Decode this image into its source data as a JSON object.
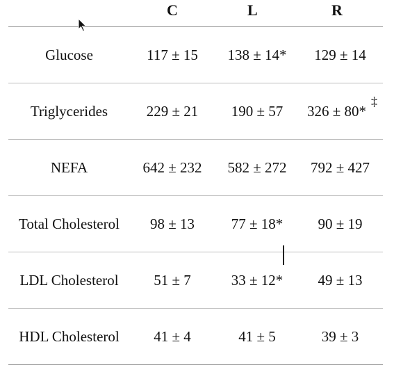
{
  "headers": [
    "",
    "C",
    "L",
    "R"
  ],
  "rows": [
    {
      "label": "Glucose",
      "c": "117 ± 15",
      "l": "138 ± 14*",
      "r": "129 ± 14"
    },
    {
      "label": "Triglycerides",
      "c": "229 ± 21",
      "l": "190 ± 57",
      "r": "326 ± 80*",
      "r_mark": "‡"
    },
    {
      "label": "NEFA",
      "c": "642 ± 232",
      "l": "582 ± 272",
      "r": "792 ± 427"
    },
    {
      "label": "Total Cholesterol",
      "c": "98 ± 13",
      "l": "77 ± 18*",
      "r": "90 ± 19"
    },
    {
      "label": "LDL Cholesterol",
      "c": "51 ± 7",
      "l": "33 ± 12*",
      "r": "49 ± 13"
    },
    {
      "label": "HDL Cholesterol",
      "c": "41 ± 4",
      "l": "41 ± 5",
      "r": "39 ± 3"
    }
  ],
  "icons": {
    "pointer": "mouse-pointer-icon",
    "text_cursor": "text-cursor-icon"
  }
}
